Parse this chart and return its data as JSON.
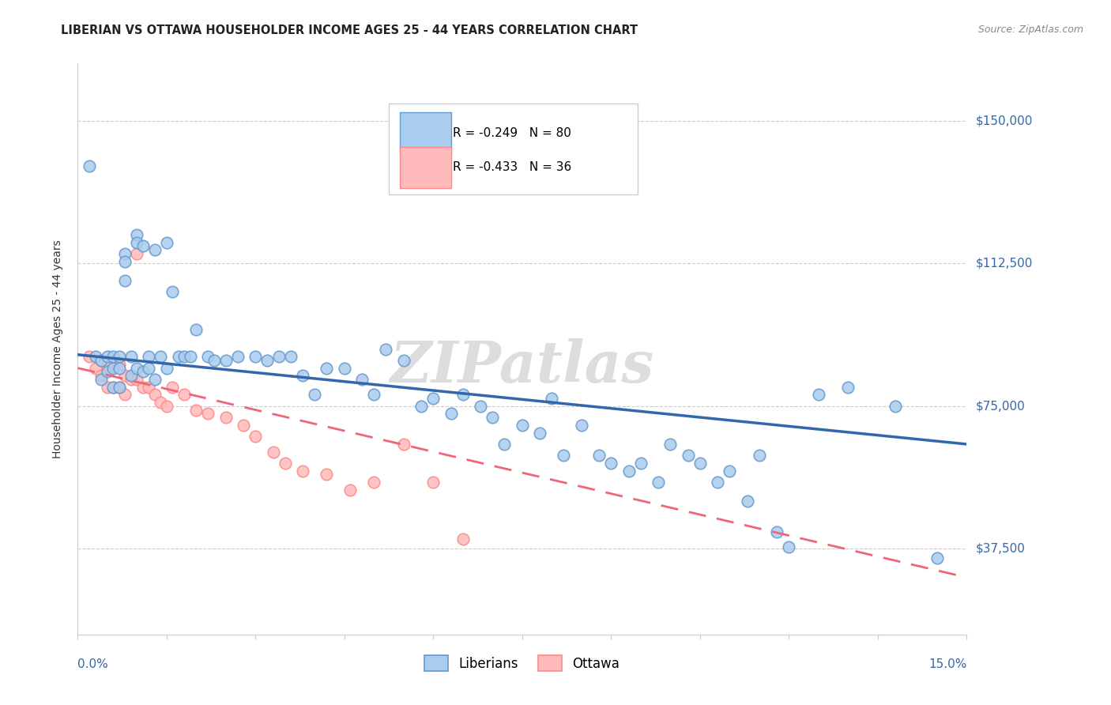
{
  "title": "LIBERIAN VS OTTAWA HOUSEHOLDER INCOME AGES 25 - 44 YEARS CORRELATION CHART",
  "source": "Source: ZipAtlas.com",
  "ylabel": "Householder Income Ages 25 - 44 years",
  "ytick_labels": [
    "$37,500",
    "$75,000",
    "$112,500",
    "$150,000"
  ],
  "ytick_values": [
    37500,
    75000,
    112500,
    150000
  ],
  "ymin": 15000,
  "ymax": 165000,
  "xmin": 0.0,
  "xmax": 0.15,
  "legend_r1_text": "R = -0.249   N = 80",
  "legend_r1_color": "#6699cc",
  "legend_r2_text": "R = -0.433   N = 36",
  "legend_r2_color": "#ff9999",
  "blue_face": "#aaccee",
  "blue_edge": "#6699cc",
  "pink_face": "#ffbbbb",
  "pink_edge": "#ff8888",
  "blue_line": "#3366aa",
  "pink_line": "#ee6677",
  "watermark_color": "#dddddd",
  "title_color": "#222222",
  "source_color": "#888888",
  "axis_label_color": "#3366aa",
  "ylabel_color": "#333333",
  "grid_color": "#cccccc",
  "liberian_x": [
    0.002,
    0.003,
    0.004,
    0.004,
    0.005,
    0.005,
    0.006,
    0.006,
    0.006,
    0.007,
    0.007,
    0.007,
    0.008,
    0.008,
    0.008,
    0.009,
    0.009,
    0.01,
    0.01,
    0.01,
    0.011,
    0.011,
    0.012,
    0.012,
    0.013,
    0.013,
    0.014,
    0.015,
    0.015,
    0.016,
    0.017,
    0.018,
    0.019,
    0.02,
    0.022,
    0.023,
    0.025,
    0.027,
    0.03,
    0.032,
    0.034,
    0.036,
    0.038,
    0.04,
    0.042,
    0.045,
    0.048,
    0.05,
    0.052,
    0.055,
    0.058,
    0.06,
    0.063,
    0.065,
    0.068,
    0.07,
    0.072,
    0.075,
    0.078,
    0.08,
    0.082,
    0.085,
    0.088,
    0.09,
    0.093,
    0.095,
    0.098,
    0.1,
    0.103,
    0.105,
    0.108,
    0.11,
    0.113,
    0.115,
    0.118,
    0.12,
    0.125,
    0.13,
    0.138,
    0.145
  ],
  "liberian_y": [
    138000,
    88000,
    87000,
    82000,
    88000,
    84000,
    88000,
    85000,
    80000,
    88000,
    85000,
    80000,
    115000,
    113000,
    108000,
    88000,
    83000,
    120000,
    118000,
    85000,
    117000,
    84000,
    88000,
    85000,
    116000,
    82000,
    88000,
    118000,
    85000,
    105000,
    88000,
    88000,
    88000,
    95000,
    88000,
    87000,
    87000,
    88000,
    88000,
    87000,
    88000,
    88000,
    83000,
    78000,
    85000,
    85000,
    82000,
    78000,
    90000,
    87000,
    75000,
    77000,
    73000,
    78000,
    75000,
    72000,
    65000,
    70000,
    68000,
    77000,
    62000,
    70000,
    62000,
    60000,
    58000,
    60000,
    55000,
    65000,
    62000,
    60000,
    55000,
    58000,
    50000,
    62000,
    42000,
    38000,
    78000,
    80000,
    75000,
    35000
  ],
  "ottawa_x": [
    0.002,
    0.003,
    0.004,
    0.004,
    0.005,
    0.005,
    0.006,
    0.006,
    0.007,
    0.007,
    0.008,
    0.008,
    0.009,
    0.01,
    0.01,
    0.011,
    0.012,
    0.013,
    0.014,
    0.015,
    0.016,
    0.018,
    0.02,
    0.022,
    0.025,
    0.028,
    0.03,
    0.033,
    0.035,
    0.038,
    0.042,
    0.046,
    0.05,
    0.055,
    0.06,
    0.065
  ],
  "ottawa_y": [
    88000,
    85000,
    87000,
    83000,
    86000,
    80000,
    85000,
    80000,
    86000,
    80000,
    83000,
    78000,
    82000,
    82000,
    115000,
    80000,
    80000,
    78000,
    76000,
    75000,
    80000,
    78000,
    74000,
    73000,
    72000,
    70000,
    67000,
    63000,
    60000,
    58000,
    57000,
    53000,
    55000,
    65000,
    55000,
    40000
  ],
  "lib_line_x": [
    0.0,
    0.15
  ],
  "lib_line_y": [
    88500,
    65000
  ],
  "ott_line_x": [
    0.0,
    0.15
  ],
  "ott_line_y": [
    85000,
    30000
  ]
}
